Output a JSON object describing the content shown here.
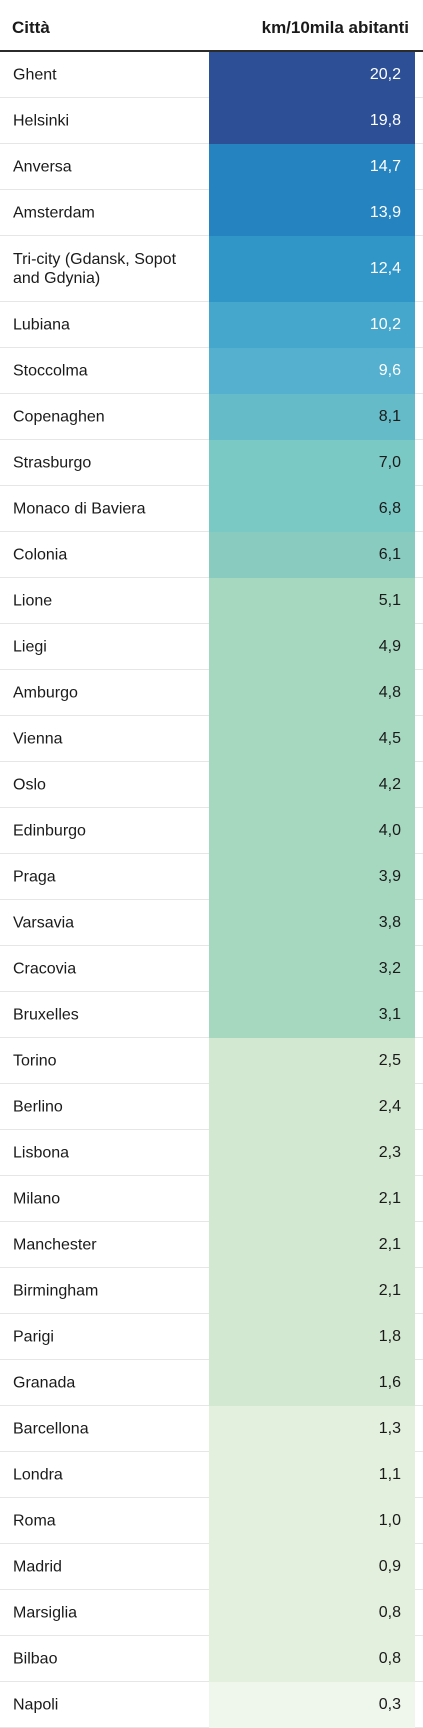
{
  "header": {
    "col_city": "Città",
    "col_value": "km/10mila abitanti"
  },
  "chart_data": {
    "type": "table",
    "columns": [
      "Città",
      "km/10mila abitanti"
    ],
    "rows": [
      {
        "city": "Ghent",
        "value": "20,2",
        "num": 20.2
      },
      {
        "city": "Helsinki",
        "value": "19,8",
        "num": 19.8
      },
      {
        "city": "Anversa",
        "value": "14,7",
        "num": 14.7
      },
      {
        "city": "Amsterdam",
        "value": "13,9",
        "num": 13.9
      },
      {
        "city": "Tri-city (Gdansk, Sopot and Gdynia)",
        "value": "12,4",
        "num": 12.4
      },
      {
        "city": "Lubiana",
        "value": "10,2",
        "num": 10.2
      },
      {
        "city": "Stoccolma",
        "value": "9,6",
        "num": 9.6
      },
      {
        "city": "Copenaghen",
        "value": "8,1",
        "num": 8.1
      },
      {
        "city": "Strasburgo",
        "value": "7,0",
        "num": 7.0
      },
      {
        "city": "Monaco di Baviera",
        "value": "6,8",
        "num": 6.8
      },
      {
        "city": "Colonia",
        "value": "6,1",
        "num": 6.1
      },
      {
        "city": "Lione",
        "value": "5,1",
        "num": 5.1
      },
      {
        "city": "Liegi",
        "value": "4,9",
        "num": 4.9
      },
      {
        "city": "Amburgo",
        "value": "4,8",
        "num": 4.8
      },
      {
        "city": "Vienna",
        "value": "4,5",
        "num": 4.5
      },
      {
        "city": "Oslo",
        "value": "4,2",
        "num": 4.2
      },
      {
        "city": "Edinburgo",
        "value": "4,0",
        "num": 4.0
      },
      {
        "city": "Praga",
        "value": "3,9",
        "num": 3.9
      },
      {
        "city": "Varsavia",
        "value": "3,8",
        "num": 3.8
      },
      {
        "city": "Cracovia",
        "value": "3,2",
        "num": 3.2
      },
      {
        "city": "Bruxelles",
        "value": "3,1",
        "num": 3.1
      },
      {
        "city": "Torino",
        "value": "2,5",
        "num": 2.5
      },
      {
        "city": "Berlino",
        "value": "2,4",
        "num": 2.4
      },
      {
        "city": "Lisbona",
        "value": "2,3",
        "num": 2.3
      },
      {
        "city": "Milano",
        "value": "2,1",
        "num": 2.1
      },
      {
        "city": "Manchester",
        "value": "2,1",
        "num": 2.1
      },
      {
        "city": "Birmingham",
        "value": "2,1",
        "num": 2.1
      },
      {
        "city": "Parigi",
        "value": "1,8",
        "num": 1.8
      },
      {
        "city": "Granada",
        "value": "1,6",
        "num": 1.6
      },
      {
        "city": "Barcellona",
        "value": "1,3",
        "num": 1.3
      },
      {
        "city": "Londra",
        "value": "1,1",
        "num": 1.1
      },
      {
        "city": "Roma",
        "value": "1,0",
        "num": 1.0
      },
      {
        "city": "Madrid",
        "value": "0,9",
        "num": 0.9
      },
      {
        "city": "Marsiglia",
        "value": "0,8",
        "num": 0.8
      },
      {
        "city": "Bilbao",
        "value": "0,8",
        "num": 0.8
      },
      {
        "city": "Napoli",
        "value": "0,3",
        "num": 0.3
      }
    ]
  },
  "colors": {
    "cells": [
      "#2c4f95",
      "#2c4f95",
      "#2583c0",
      "#2583c0",
      "#3096c8",
      "#46a7cd",
      "#55b0cf",
      "#65bbc7",
      "#7bc9c5",
      "#7bc9c5",
      "#8acbc0",
      "#a6d8c0",
      "#a6d8c0",
      "#a6d8c0",
      "#a6d8c0",
      "#a6d8c0",
      "#a6d8c0",
      "#a6d8c0",
      "#a6d8c0",
      "#a6d8c0",
      "#a6d8c0",
      "#d2e8d0",
      "#d2e8d0",
      "#d2e8d0",
      "#d2e8d0",
      "#d2e8d0",
      "#d2e8d0",
      "#d2e8d0",
      "#d2e8d0",
      "#e4f0de",
      "#e4f0de",
      "#e4f0de",
      "#e4f0de",
      "#e4f0de",
      "#e4f0de",
      "#eff6eb"
    ],
    "light_text": "#ffffff",
    "dark_text": "#1a1a1a"
  }
}
